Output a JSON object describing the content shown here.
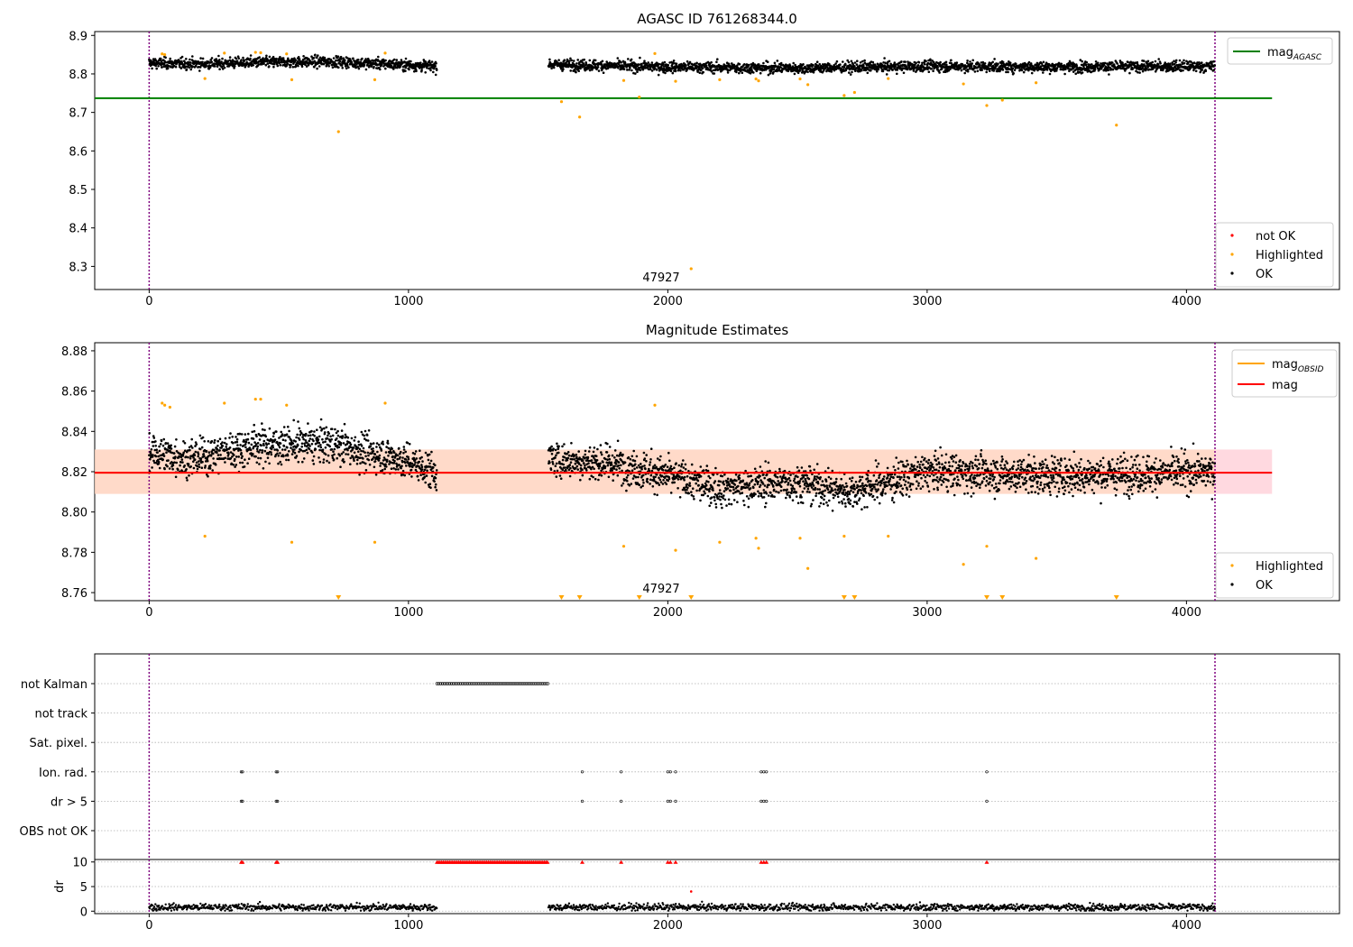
{
  "chart_data": [
    {
      "type": "scatter",
      "title": "AGASC ID 761268344.0",
      "annotation": "47927",
      "xlim": [
        -210,
        4590
      ],
      "ylim": [
        8.24,
        8.91
      ],
      "xticks": [
        0,
        1000,
        2000,
        3000,
        4000
      ],
      "yticks": [
        8.3,
        8.4,
        8.5,
        8.6,
        8.7,
        8.8,
        8.9
      ],
      "vlines": [
        0,
        4110
      ],
      "lines": [
        {
          "name": "mag",
          "subscript": "AGASC",
          "y": 8.737,
          "x": [
            -210,
            4330
          ],
          "color": "#008000"
        }
      ],
      "legend_lines_position": "top-right",
      "legend_points_position": "bottom-right",
      "legend_points": [
        {
          "name": "not OK",
          "color": "#ff0000"
        },
        {
          "name": "Highlighted",
          "color": "#ffa500"
        },
        {
          "name": "OK",
          "color": "#000000"
        }
      ],
      "series": [
        {
          "name": "OK",
          "color": "#000000",
          "segments": [
            [
              0,
              1110
            ],
            [
              1540,
              4110
            ]
          ],
          "trend": [
            [
              0,
              8.828
            ],
            [
              200,
              8.826
            ],
            [
              400,
              8.83
            ],
            [
              700,
              8.832
            ],
            [
              1100,
              8.82
            ],
            [
              1540,
              8.825
            ],
            [
              2000,
              8.818
            ],
            [
              2500,
              8.815
            ],
            [
              3000,
              8.82
            ],
            [
              3500,
              8.818
            ],
            [
              4100,
              8.82
            ]
          ],
          "spread": 0.014
        },
        {
          "name": "Highlighted",
          "color": "#ffa500",
          "points": [
            [
              50,
              8.852
            ],
            [
              60,
              8.85
            ],
            [
              215,
              8.788
            ],
            [
              290,
              8.854
            ],
            [
              410,
              8.856
            ],
            [
              430,
              8.855
            ],
            [
              530,
              8.852
            ],
            [
              550,
              8.785
            ],
            [
              730,
              8.65
            ],
            [
              870,
              8.785
            ],
            [
              910,
              8.854
            ],
            [
              1590,
              8.728
            ],
            [
              1660,
              8.688
            ],
            [
              1830,
              8.783
            ],
            [
              1890,
              8.74
            ],
            [
              1950,
              8.853
            ],
            [
              2030,
              8.781
            ],
            [
              2090,
              8.294
            ],
            [
              2200,
              8.785
            ],
            [
              2340,
              8.787
            ],
            [
              2350,
              8.782
            ],
            [
              2510,
              8.787
            ],
            [
              2540,
              8.772
            ],
            [
              2680,
              8.744
            ],
            [
              2720,
              8.752
            ],
            [
              2850,
              8.788
            ],
            [
              3140,
              8.774
            ],
            [
              3230,
              8.718
            ],
            [
              3290,
              8.732
            ],
            [
              3420,
              8.777
            ],
            [
              3730,
              8.667
            ]
          ]
        }
      ]
    },
    {
      "type": "scatter",
      "title": "Magnitude Estimates",
      "annotation": "47927",
      "xlim": [
        -210,
        4590
      ],
      "ylim": [
        8.756,
        8.884
      ],
      "xticks": [
        0,
        1000,
        2000,
        3000,
        4000
      ],
      "yticks": [
        8.76,
        8.78,
        8.8,
        8.82,
        8.84,
        8.86,
        8.88
      ],
      "vlines": [
        0,
        4110
      ],
      "bands": [
        {
          "y": [
            8.809,
            8.831
          ],
          "x": [
            -210,
            4330
          ],
          "color": "#ffc0cb"
        },
        {
          "y": [
            8.809,
            8.831
          ],
          "x": [
            -210,
            4110
          ],
          "color": "#ffdab9"
        }
      ],
      "lines": [
        {
          "name": "mag",
          "subscript": "OBSID",
          "y": 8.8195,
          "x": [
            -210,
            4110
          ],
          "color": "#ffa500"
        },
        {
          "name": "mag",
          "subscript": "",
          "y": 8.8195,
          "x": [
            -210,
            4330
          ],
          "color": "#ff0000"
        }
      ],
      "legend_lines_position": "top-right",
      "legend_points_position": "bottom-right",
      "legend_points": [
        {
          "name": "Highlighted",
          "color": "#ffa500"
        },
        {
          "name": "OK",
          "color": "#000000"
        }
      ],
      "offscale_markers": [
        730,
        1590,
        1660,
        1890,
        2090,
        2680,
        2720,
        3230,
        3290,
        3730
      ],
      "series": [
        {
          "name": "OK",
          "color": "#000000",
          "segments": [
            [
              0,
              1110
            ],
            [
              1540,
              4110
            ]
          ],
          "trend": [
            [
              0,
              8.83
            ],
            [
              150,
              8.826
            ],
            [
              400,
              8.833
            ],
            [
              700,
              8.834
            ],
            [
              1000,
              8.825
            ],
            [
              1100,
              8.82
            ],
            [
              1540,
              8.826
            ],
            [
              1800,
              8.824
            ],
            [
              2000,
              8.818
            ],
            [
              2200,
              8.812
            ],
            [
              2500,
              8.815
            ],
            [
              2700,
              8.81
            ],
            [
              3000,
              8.82
            ],
            [
              3500,
              8.818
            ],
            [
              4100,
              8.82
            ]
          ],
          "spread": 0.009
        },
        {
          "name": "Highlighted",
          "color": "#ffa500",
          "points": [
            [
              50,
              8.854
            ],
            [
              60,
              8.853
            ],
            [
              80,
              8.852
            ],
            [
              215,
              8.788
            ],
            [
              290,
              8.854
            ],
            [
              410,
              8.856
            ],
            [
              430,
              8.856
            ],
            [
              530,
              8.853
            ],
            [
              550,
              8.785
            ],
            [
              870,
              8.785
            ],
            [
              910,
              8.854
            ],
            [
              1830,
              8.783
            ],
            [
              1950,
              8.853
            ],
            [
              2030,
              8.781
            ],
            [
              2200,
              8.785
            ],
            [
              2340,
              8.787
            ],
            [
              2350,
              8.782
            ],
            [
              2510,
              8.787
            ],
            [
              2540,
              8.772
            ],
            [
              2680,
              8.788
            ],
            [
              2850,
              8.788
            ],
            [
              3140,
              8.774
            ],
            [
              3230,
              8.783
            ],
            [
              3420,
              8.777
            ]
          ]
        }
      ]
    },
    {
      "type": "scatter",
      "title": "",
      "xlim": [
        -210,
        4590
      ],
      "xticks": [
        0,
        1000,
        2000,
        3000,
        4000
      ],
      "vlines": [
        0,
        4110
      ],
      "flag_rows": [
        "not Kalman",
        "not track",
        "Sat. pixel.",
        "Ion. rad.",
        "dr > 5",
        "OBS not OK"
      ],
      "flags": {
        "not Kalman": {
          "range": [
            1110,
            1540
          ]
        },
        "Ion. rad.": {
          "points": [
            355,
            360,
            490,
            495,
            1670,
            1820,
            2000,
            2010,
            2030,
            2360,
            2370,
            2380,
            3230
          ]
        },
        "dr > 5": {
          "points": [
            355,
            360,
            490,
            495,
            1670,
            1820,
            2000,
            2010,
            2030,
            2360,
            2370,
            2380,
            3230
          ]
        }
      },
      "dr_panel": {
        "ylabel": "dr",
        "ylim": [
          -0.5,
          10.5
        ],
        "yticks": [
          0,
          5,
          10
        ],
        "red_points_at_10": [
          355,
          360,
          490,
          495,
          1670,
          1820,
          2000,
          2010,
          2030,
          2360,
          2370,
          2380,
          3230
        ],
        "red_range_at_10": [
          1110,
          1540
        ],
        "red_outliers": [
          [
            2090,
            4.0
          ]
        ],
        "ok_segments": [
          [
            0,
            1110
          ],
          [
            1540,
            4110
          ]
        ],
        "ok_mean": 0.8
      }
    }
  ]
}
